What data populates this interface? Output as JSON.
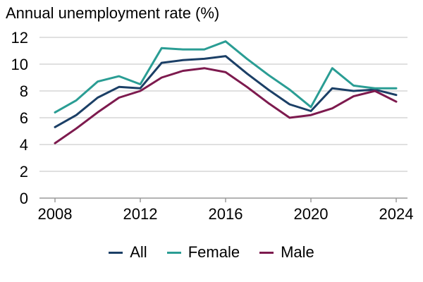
{
  "chart_data": {
    "type": "line",
    "title": "Annual unemployment rate (%)",
    "xlabel": "",
    "ylabel": "",
    "xlim": [
      2008,
      2024
    ],
    "ylim": [
      0,
      12
    ],
    "x_ticks": [
      2008,
      2012,
      2016,
      2020,
      2024
    ],
    "y_ticks": [
      0,
      2,
      4,
      6,
      8,
      10,
      12
    ],
    "grid": "horizontal",
    "legend_position": "bottom",
    "x": [
      2008,
      2009,
      2010,
      2011,
      2012,
      2013,
      2014,
      2015,
      2016,
      2017,
      2018,
      2019,
      2020,
      2021,
      2022,
      2023,
      2024
    ],
    "series": [
      {
        "name": "All",
        "color": "#1b3f66",
        "values": [
          5.3,
          6.2,
          7.5,
          8.3,
          8.2,
          10.1,
          10.3,
          10.4,
          10.6,
          9.3,
          8.1,
          7.0,
          6.5,
          8.2,
          8.0,
          8.1,
          7.7
        ]
      },
      {
        "name": "Female",
        "color": "#2a9d94",
        "values": [
          6.4,
          7.3,
          8.7,
          9.1,
          8.5,
          11.2,
          11.1,
          11.1,
          11.7,
          10.4,
          9.2,
          8.1,
          6.8,
          9.7,
          8.4,
          8.2,
          8.2
        ]
      },
      {
        "name": "Male",
        "color": "#7d1a4e",
        "values": [
          4.1,
          5.2,
          6.4,
          7.5,
          8.0,
          9.0,
          9.5,
          9.7,
          9.4,
          8.3,
          7.1,
          6.0,
          6.2,
          6.7,
          7.6,
          8.0,
          7.2
        ]
      }
    ]
  }
}
